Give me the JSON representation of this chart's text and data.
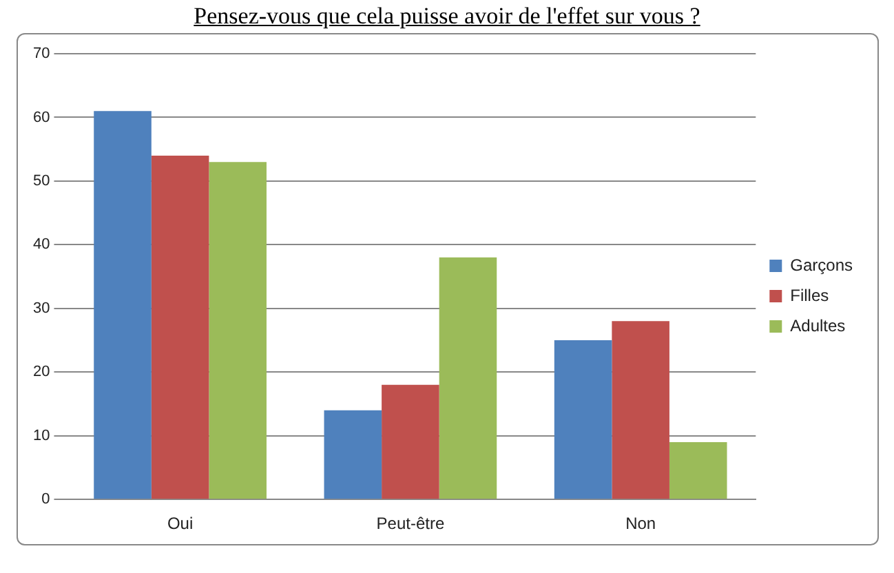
{
  "chart_data": {
    "type": "bar",
    "title": "Pensez-vous que cela puisse avoir de l'effet sur vous ?",
    "categories": [
      "Oui",
      "Peut-être",
      "Non"
    ],
    "series": [
      {
        "name": "Garçons",
        "color": "#4f81bd",
        "values": [
          61,
          14,
          25
        ]
      },
      {
        "name": "Filles",
        "color": "#c0504d",
        "values": [
          54,
          18,
          28
        ]
      },
      {
        "name": "Adultes",
        "color": "#9bbb59",
        "values": [
          53,
          38,
          9
        ]
      }
    ],
    "ylim": [
      0,
      70
    ],
    "yticks": [
      0,
      10,
      20,
      30,
      40,
      50,
      60,
      70
    ],
    "grid": "y",
    "legend": "right"
  }
}
